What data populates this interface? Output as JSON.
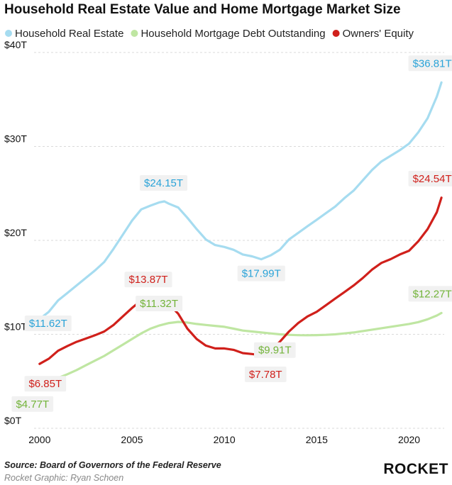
{
  "chart_data": {
    "type": "line",
    "title": "Household Real Estate Value and Home Mortgage Market Size",
    "ylim": [
      0,
      40
    ],
    "xlim": [
      1999.7,
      2021.9
    ],
    "y_ticks": [
      {
        "value": 0,
        "label": "$0T"
      },
      {
        "value": 10,
        "label": "$10T"
      },
      {
        "value": 20,
        "label": "$20T"
      },
      {
        "value": 30,
        "label": "$30T"
      },
      {
        "value": 40,
        "label": "$40T"
      }
    ],
    "x_ticks": [
      {
        "value": 2000,
        "label": "2000"
      },
      {
        "value": 2005,
        "label": "2005"
      },
      {
        "value": 2010,
        "label": "2010"
      },
      {
        "value": 2015,
        "label": "2015"
      },
      {
        "value": 2020,
        "label": "2020"
      }
    ],
    "grid": "horizontal",
    "legend_position": "top",
    "series": [
      {
        "name": "Household Real Estate",
        "color": "#a6dcf0",
        "label_color": "#2aa3d8",
        "x": [
          2000,
          2000.5,
          2001,
          2001.5,
          2002,
          2002.5,
          2003,
          2003.5,
          2004,
          2004.5,
          2005,
          2005.5,
          2006,
          2006.5,
          2006.75,
          2007,
          2007.5,
          2008,
          2008.5,
          2009,
          2009.5,
          2010,
          2010.5,
          2011,
          2011.5,
          2012,
          2012.5,
          2013,
          2013.5,
          2014,
          2014.5,
          2015,
          2015.5,
          2016,
          2016.5,
          2017,
          2017.5,
          2018,
          2018.5,
          2019,
          2019.5,
          2020,
          2020.5,
          2021,
          2021.5,
          2021.75
        ],
        "values": [
          11.62,
          12.4,
          13.6,
          14.4,
          15.2,
          16.0,
          16.8,
          17.7,
          19.1,
          20.6,
          22.1,
          23.3,
          23.7,
          24.05,
          24.15,
          23.9,
          23.5,
          22.4,
          21.2,
          20.1,
          19.5,
          19.3,
          19.0,
          18.5,
          18.3,
          17.99,
          18.4,
          19.0,
          20.1,
          20.8,
          21.5,
          22.2,
          22.9,
          23.6,
          24.5,
          25.3,
          26.4,
          27.5,
          28.4,
          29.0,
          29.6,
          30.3,
          31.5,
          33.0,
          35.3,
          36.81
        ],
        "point_labels": [
          {
            "text": "$11.62T",
            "x": 2000
          },
          {
            "text": "$24.15T",
            "x": 2006.75
          },
          {
            "text": "$17.99T",
            "x": 2012
          },
          {
            "text": "$36.81T",
            "x": 2021.75
          }
        ]
      },
      {
        "name": "Household Mortgage Debt Outstanding",
        "color": "#bfe6a2",
        "label_color": "#72b339",
        "x": [
          2000,
          2000.5,
          2001,
          2001.5,
          2002,
          2002.5,
          2003,
          2003.5,
          2004,
          2004.5,
          2005,
          2005.5,
          2006,
          2006.5,
          2007,
          2007.5,
          2008,
          2008.5,
          2009,
          2009.5,
          2010,
          2010.5,
          2011,
          2011.5,
          2012,
          2012.5,
          2013,
          2013.5,
          2014,
          2014.5,
          2015,
          2015.5,
          2016,
          2016.5,
          2017,
          2017.5,
          2018,
          2018.5,
          2019,
          2019.5,
          2020,
          2020.5,
          2021,
          2021.5,
          2021.75
        ],
        "values": [
          4.77,
          5.0,
          5.35,
          5.75,
          6.2,
          6.7,
          7.2,
          7.7,
          8.3,
          8.9,
          9.5,
          10.1,
          10.6,
          10.95,
          11.2,
          11.32,
          11.25,
          11.1,
          11.0,
          10.9,
          10.8,
          10.6,
          10.4,
          10.3,
          10.2,
          10.1,
          10.0,
          9.95,
          9.91,
          9.9,
          9.92,
          9.95,
          10.0,
          10.1,
          10.2,
          10.35,
          10.5,
          10.65,
          10.8,
          10.95,
          11.1,
          11.3,
          11.6,
          12.0,
          12.27
        ],
        "point_labels": [
          {
            "text": "$4.77T",
            "x": 2000
          },
          {
            "text": "$11.32T",
            "x": 2007.5
          },
          {
            "text": "$9.91T",
            "x": 2014
          },
          {
            "text": "$12.27T",
            "x": 2021.75
          }
        ]
      },
      {
        "name": "Owners' Equity",
        "color": "#d0201b",
        "label_color": "#d0201b",
        "x": [
          2000,
          2000.5,
          2001,
          2001.5,
          2002,
          2002.5,
          2003,
          2003.5,
          2004,
          2004.5,
          2005,
          2005.5,
          2006,
          2006.5,
          2007,
          2007.5,
          2008,
          2008.5,
          2009,
          2009.5,
          2010,
          2010.5,
          2011,
          2011.5,
          2012,
          2012.5,
          2013,
          2013.5,
          2014,
          2014.5,
          2015,
          2015.5,
          2016,
          2016.5,
          2017,
          2017.5,
          2018,
          2018.5,
          2019,
          2019.5,
          2020,
          2020.5,
          2021,
          2021.5,
          2021.75
        ],
        "values": [
          6.85,
          7.4,
          8.25,
          8.75,
          9.2,
          9.55,
          9.9,
          10.3,
          11.0,
          11.9,
          12.8,
          13.6,
          13.87,
          13.7,
          13.2,
          12.2,
          10.6,
          9.5,
          8.8,
          8.5,
          8.5,
          8.35,
          8.0,
          7.9,
          7.78,
          8.3,
          9.2,
          10.3,
          11.2,
          11.9,
          12.4,
          13.1,
          13.8,
          14.5,
          15.2,
          16.0,
          16.9,
          17.6,
          18.0,
          18.5,
          18.9,
          19.9,
          21.2,
          23.0,
          24.54
        ],
        "point_labels": [
          {
            "text": "$6.85T",
            "x": 2000
          },
          {
            "text": "$13.87T",
            "x": 2006
          },
          {
            "text": "$7.78T",
            "x": 2012
          },
          {
            "text": "$24.54T",
            "x": 2021.75
          }
        ]
      }
    ]
  },
  "footer": {
    "source": "Source: Board of Governors of the Federal Reserve",
    "credit": "Rocket Graphic: Ryan Schoen",
    "brand": "ROCKET"
  }
}
